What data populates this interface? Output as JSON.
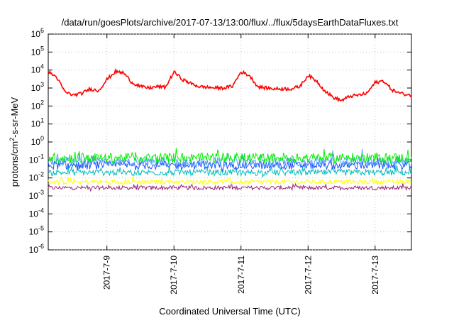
{
  "chart_data": {
    "type": "line",
    "title": "/data/run/goesPlots/archive/2017-07-13/13:00/flux/../flux/5daysEarthDataFluxes.txt",
    "xlabel": "Coordinated Universal Time (UTC)",
    "ylabel": {
      "prefix": "protons/cm",
      "superscript": "2",
      "suffix": "-s-sr-MeV"
    },
    "yscale": "log",
    "ylim": [
      1e-06,
      1000000.0
    ],
    "xlim": [
      "2017-07-08T03:00",
      "2017-07-13T13:00"
    ],
    "grid": true,
    "y_ticks": [
      {
        "value": 1e-06,
        "base": "10",
        "exp": "-6"
      },
      {
        "value": 1e-05,
        "base": "10",
        "exp": "-5"
      },
      {
        "value": 0.0001,
        "base": "10",
        "exp": "-4"
      },
      {
        "value": 0.001,
        "base": "10",
        "exp": "-3"
      },
      {
        "value": 0.01,
        "base": "10",
        "exp": "-2"
      },
      {
        "value": 0.1,
        "base": "10",
        "exp": "-1"
      },
      {
        "value": 1,
        "base": "10",
        "exp": "0"
      },
      {
        "value": 10,
        "base": "10",
        "exp": "1"
      },
      {
        "value": 100,
        "base": "10",
        "exp": "2"
      },
      {
        "value": 1000,
        "base": "10",
        "exp": "3"
      },
      {
        "value": 10000,
        "base": "10",
        "exp": "4"
      },
      {
        "value": 100000,
        "base": "10",
        "exp": "5"
      },
      {
        "value": 1000000,
        "base": "10",
        "exp": "6"
      }
    ],
    "x_ticks": [
      {
        "value": "2017-07-09T00:00",
        "label": "2017-7-9"
      },
      {
        "value": "2017-07-10T00:00",
        "label": "2017-7-10"
      },
      {
        "value": "2017-07-11T00:00",
        "label": "2017-7-11"
      },
      {
        "value": "2017-07-12T00:00",
        "label": "2017-7-12"
      },
      {
        "value": "2017-07-13T00:00",
        "label": "2017-7-13"
      }
    ],
    "series": [
      {
        "color": "#ff0000",
        "x": [
          "2017-07-08T03:00",
          "2017-07-08T06:00",
          "2017-07-08T09:00",
          "2017-07-08T12:00",
          "2017-07-08T15:00",
          "2017-07-08T18:00",
          "2017-07-08T21:00",
          "2017-07-09T00:00",
          "2017-07-09T03:00",
          "2017-07-09T06:00",
          "2017-07-09T09:00",
          "2017-07-09T12:00",
          "2017-07-09T15:00",
          "2017-07-09T18:00",
          "2017-07-09T21:00",
          "2017-07-10T00:00",
          "2017-07-10T03:00",
          "2017-07-10T06:00",
          "2017-07-10T09:00",
          "2017-07-10T12:00",
          "2017-07-10T15:00",
          "2017-07-10T18:00",
          "2017-07-10T21:00",
          "2017-07-11T00:00",
          "2017-07-11T03:00",
          "2017-07-11T06:00",
          "2017-07-11T09:00",
          "2017-07-11T12:00",
          "2017-07-11T15:00",
          "2017-07-11T18:00",
          "2017-07-11T21:00",
          "2017-07-12T00:00",
          "2017-07-12T03:00",
          "2017-07-12T06:00",
          "2017-07-12T09:00",
          "2017-07-12T12:00",
          "2017-07-12T15:00",
          "2017-07-12T18:00",
          "2017-07-12T21:00",
          "2017-07-13T00:00",
          "2017-07-13T03:00",
          "2017-07-13T06:00",
          "2017-07-13T09:00",
          "2017-07-13T13:00"
        ],
        "y": [
          8000,
          4000,
          600,
          400,
          500,
          900,
          700,
          3000,
          8000,
          7000,
          2000,
          1200,
          1000,
          1200,
          1100,
          8000,
          3000,
          1800,
          1200,
          1100,
          1000,
          1000,
          1300,
          8000,
          5000,
          1200,
          1000,
          900,
          900,
          900,
          1200,
          5000,
          2500,
          700,
          300,
          200,
          350,
          400,
          500,
          2000,
          2500,
          800,
          500,
          400
        ]
      },
      {
        "color": "#00ee00",
        "level": 0.13,
        "noise": 0.55
      },
      {
        "color": "#4f9fff",
        "level": 0.08,
        "noise": 0.5
      },
      {
        "color": "#1e50ff",
        "level": 0.05,
        "noise": 0.45
      },
      {
        "color": "#00bbbb",
        "level": 0.02,
        "noise": 0.35
      },
      {
        "color": "#ffff00",
        "level": 0.006,
        "noise": 0.25
      },
      {
        "color": "#992277",
        "level": 0.0028,
        "noise": 0.22
      }
    ]
  }
}
